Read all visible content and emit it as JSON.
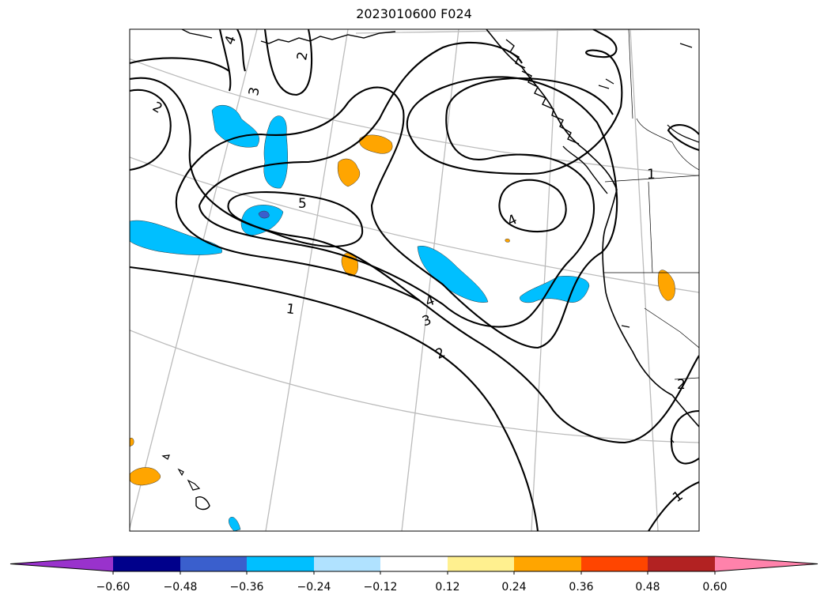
{
  "title": "2023010600 F024",
  "map": {
    "contour_labels": [
      "1",
      "1",
      "1",
      "2",
      "2",
      "2",
      "2",
      "3",
      "3",
      "4",
      "4",
      "4",
      "5"
    ],
    "colors": {
      "contour": "#000000",
      "graticule": "#bbbbbb",
      "coast": "#000000"
    }
  },
  "colorbar": {
    "ticks": [
      "−0.60",
      "−0.48",
      "−0.36",
      "−0.24",
      "−0.12",
      "0.12",
      "0.24",
      "0.36",
      "0.48",
      "0.60"
    ],
    "bins": [
      {
        "color": "#9932cc"
      },
      {
        "color": "#00008b"
      },
      {
        "color": "#3a5fcd"
      },
      {
        "color": "#00bfff"
      },
      {
        "color": "#b0e2ff"
      },
      {
        "color": "#ffffff"
      },
      {
        "color": "#fff08f"
      },
      {
        "color": "#ffa500"
      },
      {
        "color": "#ff4500"
      },
      {
        "color": "#b22222"
      },
      {
        "color": "#ff82ab"
      },
      {
        "color": "#ff82ab"
      }
    ]
  }
}
